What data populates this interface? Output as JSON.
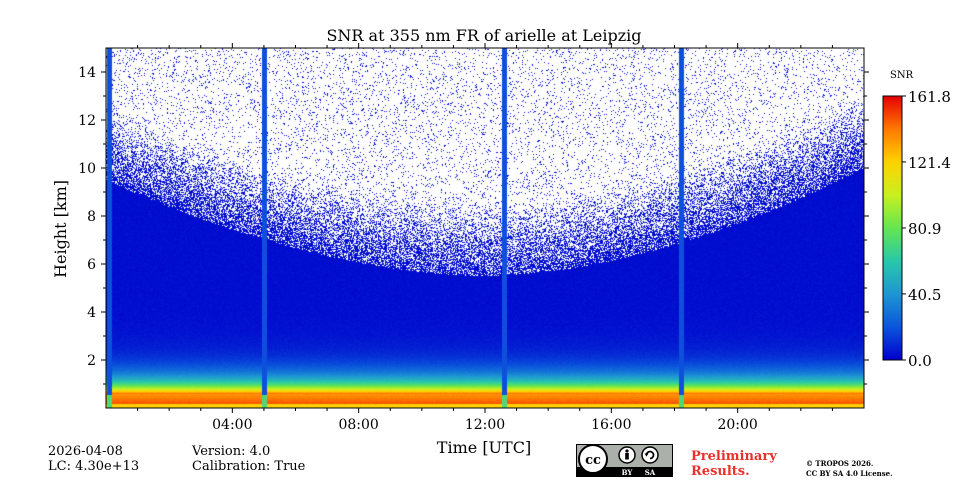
{
  "chart_data": {
    "type": "heatmap",
    "title": "SNR at 355 nm FR of arielle at Leipzig",
    "xlabel": "Time [UTC]",
    "ylabel": "Height [km]",
    "xlim": [
      0,
      24
    ],
    "ylim": [
      0,
      15
    ],
    "x_ticks": [
      {
        "value": 4,
        "label": "04:00"
      },
      {
        "value": 8,
        "label": "08:00"
      },
      {
        "value": 12,
        "label": "12:00"
      },
      {
        "value": 16,
        "label": "16:00"
      },
      {
        "value": 20,
        "label": "20:00"
      }
    ],
    "y_ticks": [
      {
        "value": 2,
        "label": "2"
      },
      {
        "value": 4,
        "label": "4"
      },
      {
        "value": 6,
        "label": "6"
      },
      {
        "value": 8,
        "label": "8"
      },
      {
        "value": 10,
        "label": "10"
      },
      {
        "value": 12,
        "label": "12"
      },
      {
        "value": 14,
        "label": "14"
      }
    ],
    "colorbar": {
      "label": "SNR",
      "min": 0.0,
      "max": 161.8,
      "ticks": [
        {
          "value": 0.0,
          "label": "0.0"
        },
        {
          "value": 40.5,
          "label": "40.5"
        },
        {
          "value": 80.9,
          "label": "80.9"
        },
        {
          "value": 121.4,
          "label": "121.4"
        },
        {
          "value": 161.8,
          "label": "161.8"
        }
      ],
      "colors": [
        "#0000cd",
        "#0a55dc",
        "#1e96d2",
        "#28c8aa",
        "#64e650",
        "#c8f01e",
        "#ffd200",
        "#ff7800",
        "#e60000"
      ]
    },
    "gaps_hours": [
      0.1,
      5.0,
      12.6,
      18.2
    ],
    "noise_floor_height_km": {
      "night_start": 9.5,
      "midday": 5.5,
      "night_end": 10.0
    }
  },
  "footer": {
    "date": "2026-04-08",
    "lc": "LC: 4.30e+13",
    "version": "Version: 4.0",
    "calibration": "Calibration: True",
    "preliminary_line1": "Preliminary",
    "preliminary_line2": "Results.",
    "copyright_line1": "© TROPOS 2026.",
    "copyright_line2": "CC BY SA 4.0 License.",
    "badge_cc": "cc",
    "badge_by": "BY",
    "badge_sa": "SA"
  }
}
